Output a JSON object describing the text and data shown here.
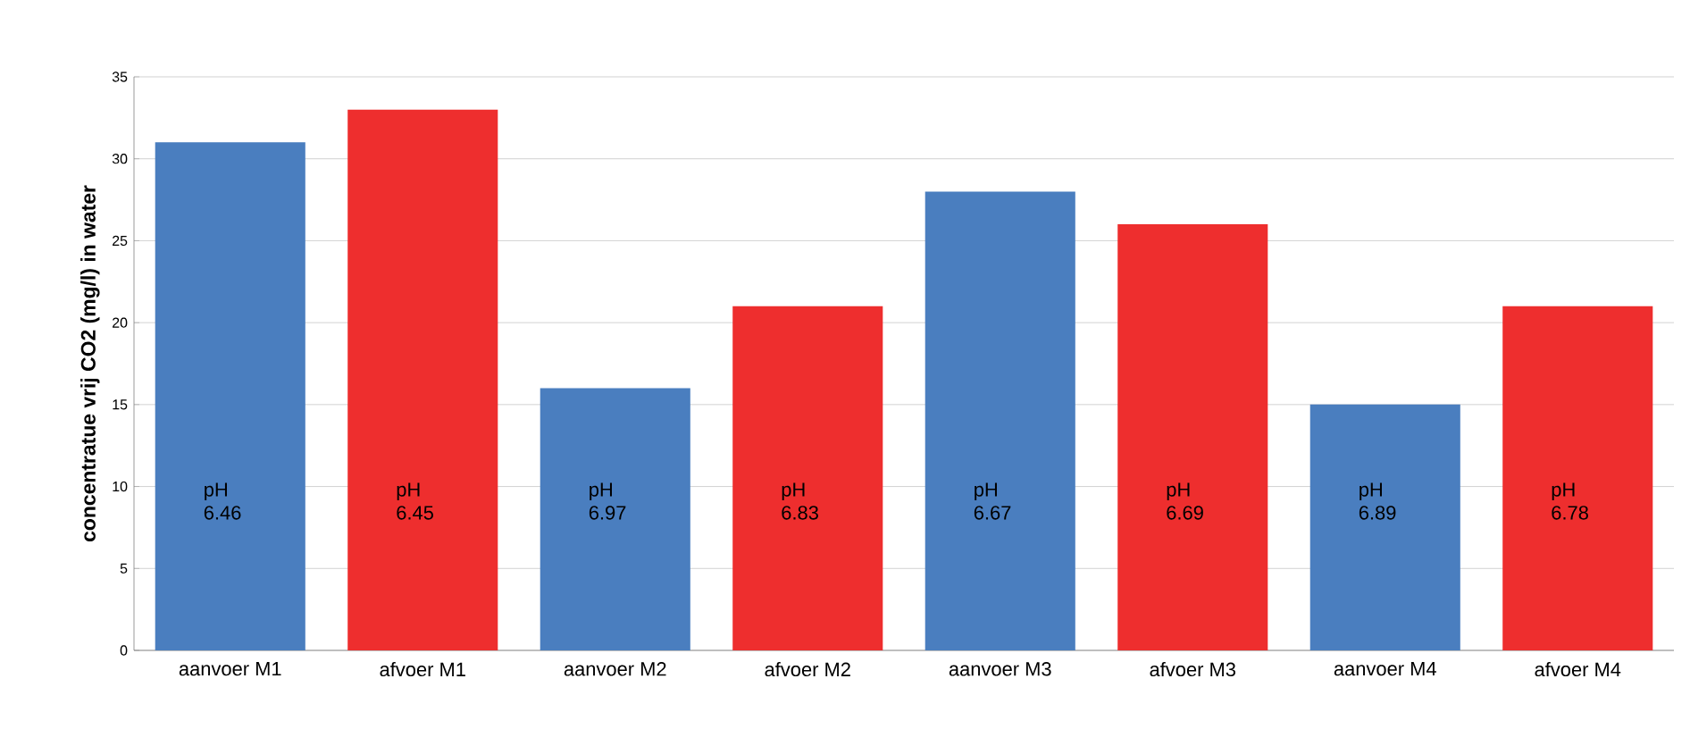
{
  "chart_data": {
    "type": "bar",
    "ylabel": "concentratue vrij CO2 (mg/l) in water",
    "categories": [
      "aanvoer M1",
      "afvoer M1",
      "aanvoer M2",
      "afvoer M2",
      "aanvoer M3",
      "afvoer M3",
      "aanvoer M4",
      "afvoer M4"
    ],
    "values": [
      31,
      33,
      16,
      21,
      28,
      26,
      15,
      21
    ],
    "colors": [
      "#4a7ebf",
      "#ee2e2e",
      "#4a7ebf",
      "#ee2e2e",
      "#4a7ebf",
      "#ee2e2e",
      "#4a7ebf",
      "#ee2e2e"
    ],
    "ylim": [
      0,
      35
    ],
    "yticks": [
      0,
      5,
      10,
      15,
      20,
      25,
      30,
      35
    ],
    "grid": "y",
    "annotations": [
      "pH 6.46",
      "pH 6.45",
      "pH 6.97",
      "pH 6.83",
      "pH 6.67",
      "pH 6.69",
      "pH 6.89",
      "pH 6.78"
    ]
  }
}
